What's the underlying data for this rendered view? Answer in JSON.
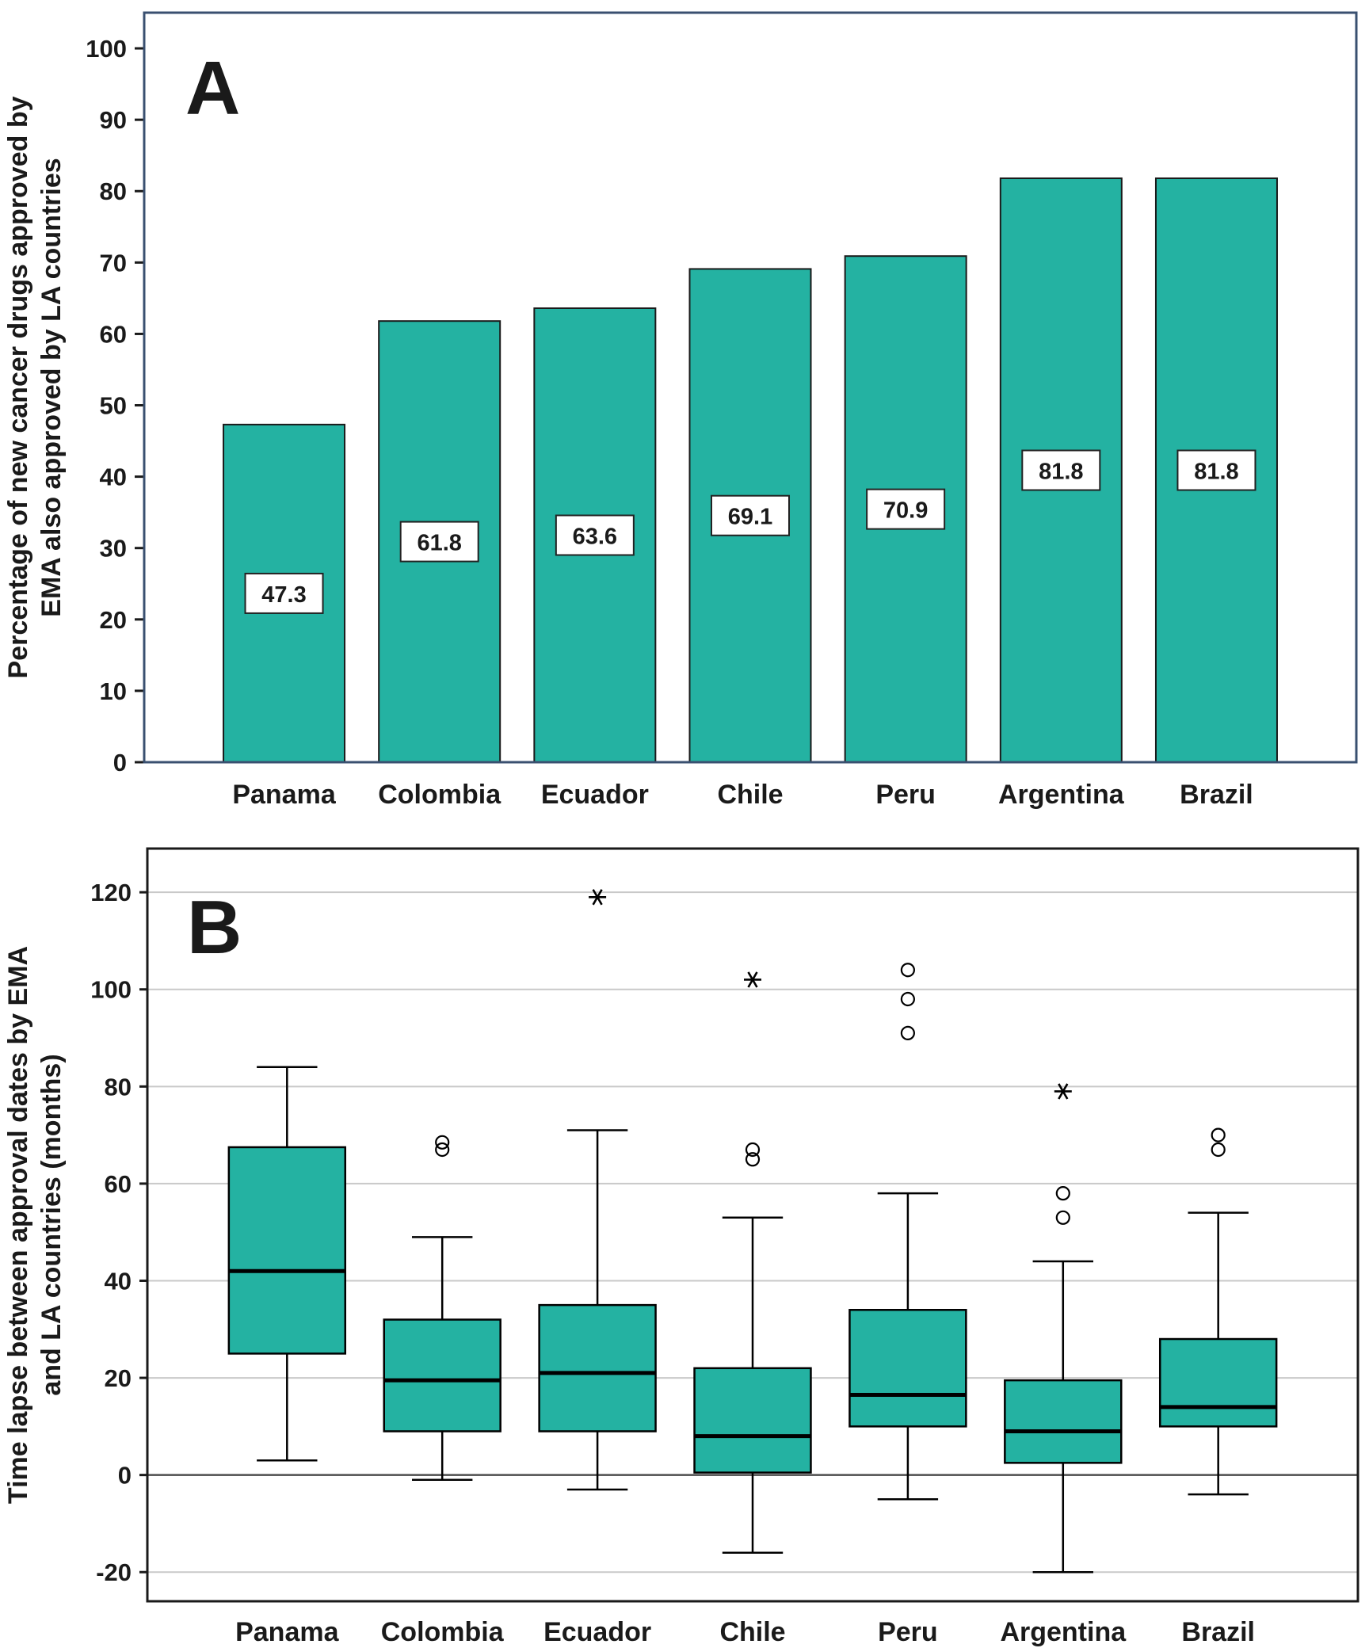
{
  "figure": {
    "panel_a_label": "A",
    "panel_b_label": "B"
  },
  "colors": {
    "teal_fill": "#24b2a2",
    "bar_stroke": "#1a1a1a",
    "frame_a": "#3a5070",
    "frame_b": "#1a1a1a",
    "grid": "#c9c9c9",
    "zero_line": "#4d4d4d",
    "text": "#1a1a1a"
  },
  "chart_data": [
    {
      "type": "bar",
      "panel": "A",
      "categories": [
        "Panama",
        "Colombia",
        "Ecuador",
        "Chile",
        "Peru",
        "Argentina",
        "Brazil"
      ],
      "values": [
        47.3,
        61.8,
        63.6,
        69.1,
        70.9,
        81.8,
        81.8
      ],
      "bar_labels": [
        "47.3",
        "61.8",
        "63.6",
        "69.1",
        "70.9",
        "81.8",
        "81.8"
      ],
      "ylabel_lines": [
        "Percentage of new cancer drugs approved by",
        "EMA also approved by LA countries"
      ],
      "ylim": [
        0,
        105
      ],
      "yticks": [
        0,
        10,
        20,
        30,
        40,
        50,
        60,
        70,
        80,
        90,
        100
      ],
      "grid": false,
      "legend": "none"
    },
    {
      "type": "boxplot",
      "panel": "B",
      "categories": [
        "Panama",
        "Colombia",
        "Ecuador",
        "Chile",
        "Peru",
        "Argentina",
        "Brazil"
      ],
      "ylabel_lines": [
        "Time lapse between approval dates by EMA",
        "and LA countries (months)"
      ],
      "ylim": [
        -26,
        129
      ],
      "yticks": [
        -20,
        0,
        20,
        40,
        60,
        80,
        100,
        120
      ],
      "grid": true,
      "legend": "none",
      "series": [
        {
          "name": "Panama",
          "whisker_low": 3,
          "q1": 25,
          "median": 42,
          "q3": 67.5,
          "whisker_high": 84,
          "outliers_circle": [],
          "outliers_star": []
        },
        {
          "name": "Colombia",
          "whisker_low": -1,
          "q1": 9,
          "median": 19.5,
          "q3": 32,
          "whisker_high": 49,
          "outliers_circle": [
            67,
            68.5
          ],
          "outliers_star": []
        },
        {
          "name": "Ecuador",
          "whisker_low": -3,
          "q1": 9,
          "median": 21,
          "q3": 35,
          "whisker_high": 71,
          "outliers_circle": [],
          "outliers_star": [
            119
          ]
        },
        {
          "name": "Chile",
          "whisker_low": -16,
          "q1": 0.5,
          "median": 8,
          "q3": 22,
          "whisker_high": 53,
          "outliers_circle": [
            65,
            67
          ],
          "outliers_star": [
            102
          ]
        },
        {
          "name": "Peru",
          "whisker_low": -5,
          "q1": 10,
          "median": 16.5,
          "q3": 34,
          "whisker_high": 58,
          "outliers_circle": [
            91,
            98,
            104
          ],
          "outliers_star": []
        },
        {
          "name": "Argentina",
          "whisker_low": -20,
          "q1": 2.5,
          "median": 9,
          "q3": 19.5,
          "whisker_high": 44,
          "outliers_circle": [
            53,
            58
          ],
          "outliers_star": [
            79
          ]
        },
        {
          "name": "Brazil",
          "whisker_low": -4,
          "q1": 10,
          "median": 14,
          "q3": 28,
          "whisker_high": 54,
          "outliers_circle": [
            67,
            70
          ],
          "outliers_star": []
        }
      ]
    }
  ]
}
